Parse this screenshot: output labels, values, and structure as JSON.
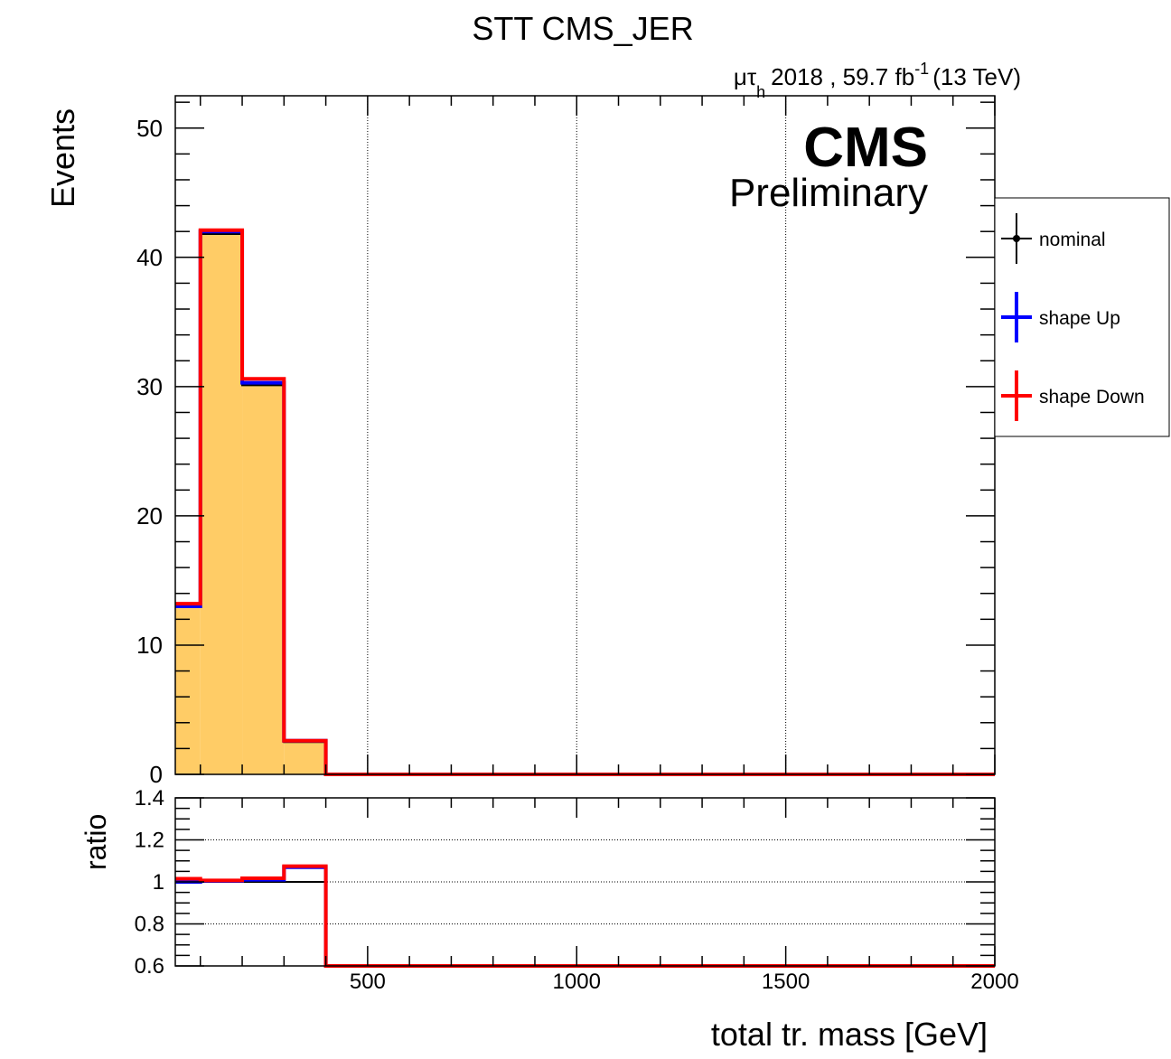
{
  "chart_data": [
    {
      "type": "line",
      "panel": "main",
      "title": "STT CMS_JER",
      "lumi_label": {
        "channel": "μτ",
        "channel_sub": "h",
        "text": "2018 , 59.7 fb",
        "sup": "-1",
        "energy": "(13 TeV)"
      },
      "cms_label": "CMS",
      "cms_sublabel": "Preliminary",
      "ylabel": "Events",
      "xlabel": "total tr. mass [GeV]",
      "xlim": [
        40,
        2000
      ],
      "ylim": [
        0,
        52.5
      ],
      "yticks": [
        0,
        10,
        20,
        30,
        40,
        50
      ],
      "xgrid": [
        500,
        1000,
        1500
      ],
      "bin_edges": [
        40,
        100,
        200,
        300,
        400,
        2000
      ],
      "series": [
        {
          "name": "nominal",
          "color": "#000000",
          "style": "filled",
          "fill": "#ffcc66",
          "values": [
            13.0,
            41.8,
            30.1,
            2.5,
            0.0
          ]
        },
        {
          "name": "shape Up",
          "color": "#0000ff",
          "values": [
            13.0,
            42.0,
            30.3,
            2.6,
            0.0
          ]
        },
        {
          "name": "shape Down",
          "color": "#ff0000",
          "values": [
            13.2,
            42.1,
            30.6,
            2.6,
            0.0
          ]
        }
      ],
      "legend": [
        {
          "label": "nominal",
          "color": "#000000",
          "marker": true
        },
        {
          "label": "shape Up",
          "color": "#0000ff",
          "marker": false
        },
        {
          "label": "shape Down",
          "color": "#ff0000",
          "marker": false
        }
      ]
    },
    {
      "type": "line",
      "panel": "ratio",
      "ylabel": "ratio",
      "xlim": [
        40,
        2000
      ],
      "ylim": [
        0.6,
        1.4
      ],
      "yticks": [
        0.6,
        0.8,
        1,
        1.2,
        1.4
      ],
      "ytick_labels": [
        "0.6",
        "0.8",
        "1",
        "1.2",
        "1.4"
      ],
      "ygrid": [
        0.8,
        1,
        1.2
      ],
      "xticks": [
        500,
        1000,
        1500,
        2000
      ],
      "xtick_labels": [
        "500",
        "1000",
        "1500",
        "2000"
      ],
      "bin_edges": [
        40,
        100,
        200,
        300,
        400,
        2000
      ],
      "series": [
        {
          "name": "nominal",
          "color": "#000000",
          "values": [
            1.0,
            1.0,
            1.0,
            1.0,
            0.0
          ]
        },
        {
          "name": "shape Up",
          "color": "#0000ff",
          "values": [
            1.0,
            1.005,
            1.01,
            1.07,
            0.0
          ]
        },
        {
          "name": "shape Down",
          "color": "#ff0000",
          "values": [
            1.015,
            1.007,
            1.017,
            1.075,
            0.0
          ]
        }
      ]
    }
  ]
}
